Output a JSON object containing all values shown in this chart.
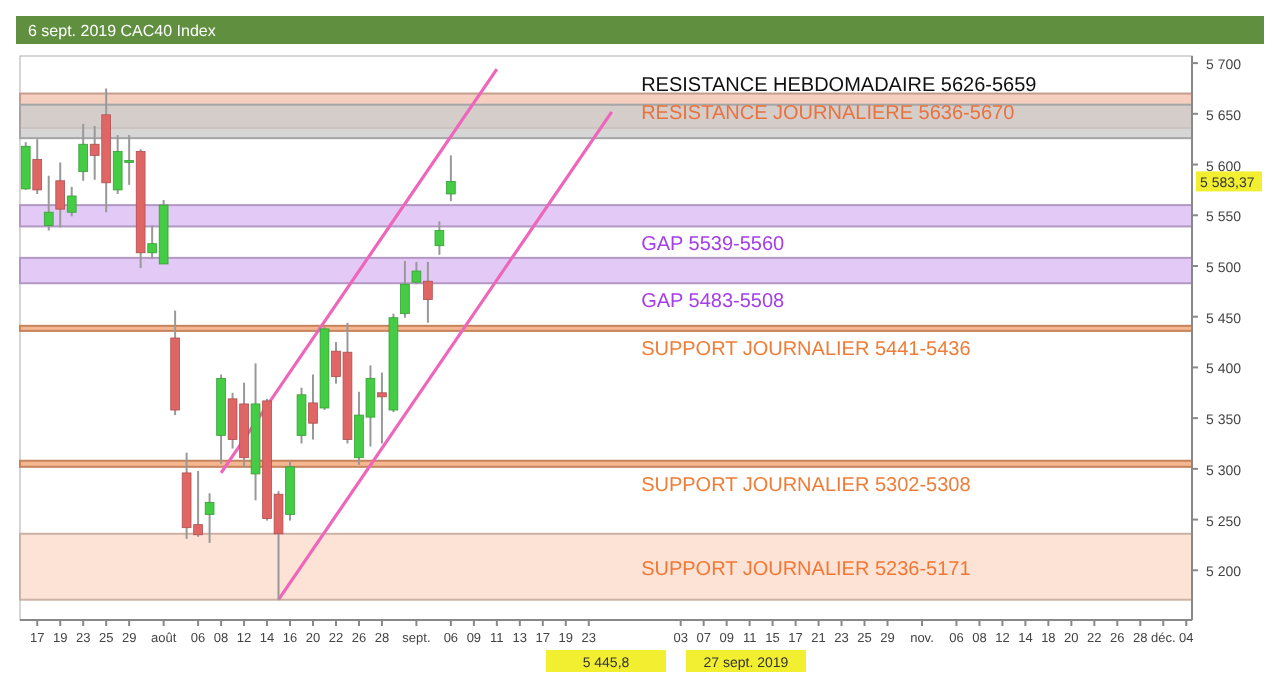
{
  "chart_data": {
    "type": "candlestick",
    "title": "6 sept. 2019 CAC40 Index",
    "categories": [
      null,
      "17",
      null,
      "19",
      null,
      "23",
      null,
      "25",
      null,
      "29",
      null,
      null,
      "août",
      null,
      null,
      "06",
      null,
      "08",
      null,
      "12",
      null,
      "14",
      null,
      "16",
      null,
      "20",
      null,
      "22",
      null,
      "26",
      null,
      "28",
      null,
      null,
      "sept.",
      null,
      null,
      "06",
      null,
      "09",
      null,
      "11",
      null,
      "13",
      null,
      "17",
      null,
      "19",
      null,
      "23",
      null,
      null,
      null,
      null,
      null,
      null,
      null,
      "03",
      null,
      "07",
      null,
      "09",
      null,
      "11",
      null,
      "15",
      null,
      "17",
      null,
      "21",
      null,
      "23",
      null,
      "25",
      null,
      "29",
      null,
      null,
      "nov.",
      null,
      null,
      "06",
      null,
      "08",
      null,
      "12",
      null,
      "14",
      null,
      "18",
      null,
      "20",
      null,
      "22",
      null,
      "26",
      null,
      "28",
      null,
      "déc.",
      null,
      "04"
    ],
    "ohlc": [
      [
        5576,
        5622,
        5575,
        5618
      ],
      [
        5605,
        5625,
        5571,
        5575
      ],
      [
        5540,
        5589,
        5535,
        5553
      ],
      [
        5584,
        5602,
        5538,
        5556
      ],
      [
        5553,
        5578,
        5549,
        5569
      ],
      [
        5593,
        5640,
        5584,
        5620
      ],
      [
        5620,
        5638,
        5585,
        5609
      ],
      [
        5649,
        5675,
        5553,
        5582
      ],
      [
        5575,
        5629,
        5571,
        5613
      ],
      [
        5602,
        5629,
        5580,
        5604
      ],
      [
        5613,
        5615,
        5498,
        5513
      ],
      [
        5513,
        5540,
        5507,
        5522
      ],
      [
        5502,
        5565,
        5502,
        5560
      ],
      [
        5429,
        5456,
        5353,
        5358
      ],
      [
        5296,
        5316,
        5231,
        5242
      ],
      [
        5245,
        5298,
        5233,
        5235
      ],
      [
        5255,
        5276,
        5227,
        5267
      ],
      [
        5333,
        5393,
        5305,
        5389
      ],
      [
        5369,
        5375,
        5320,
        5329
      ],
      [
        5364,
        5385,
        5302,
        5311
      ],
      [
        5295,
        5404,
        5269,
        5364
      ],
      [
        5367,
        5369,
        5249,
        5251
      ],
      [
        5275,
        5278,
        5171,
        5236
      ],
      [
        5255,
        5307,
        5249,
        5302
      ],
      [
        5333,
        5380,
        5325,
        5373
      ],
      [
        5365,
        5393,
        5329,
        5345
      ],
      [
        5360,
        5440,
        5358,
        5438
      ],
      [
        5416,
        5425,
        5384,
        5391
      ],
      [
        5415,
        5444,
        5325,
        5329
      ],
      [
        5311,
        5376,
        5304,
        5353
      ],
      [
        5351,
        5402,
        5322,
        5389
      ],
      [
        5375,
        5395,
        5325,
        5371
      ],
      [
        5358,
        5453,
        5356,
        5449
      ],
      [
        5453,
        5505,
        5449,
        5482
      ],
      [
        5484,
        5504,
        5482,
        5495
      ],
      [
        5485,
        5504,
        5444,
        5467
      ],
      [
        5520,
        5544,
        5511,
        5535
      ],
      [
        5571,
        5609,
        5564,
        5583.37
      ],
      null,
      null,
      null,
      null,
      null,
      null,
      null,
      null,
      null,
      null,
      null,
      null,
      null,
      null,
      null,
      null,
      null,
      null,
      null,
      null,
      null,
      null,
      null,
      null,
      null,
      null,
      null,
      null,
      null,
      null,
      null,
      null,
      null,
      null,
      null,
      null,
      null,
      null,
      null,
      null,
      null,
      null,
      null,
      null,
      null,
      null,
      null,
      null,
      null,
      null,
      null,
      null,
      null,
      null,
      null,
      null,
      null,
      null,
      null,
      null,
      null,
      null,
      null,
      null
    ],
    "colors": [
      "#44cc44",
      "#e06666",
      "#44cc44",
      "#e06666",
      "#44cc44",
      "#44cc44",
      "#e06666",
      "#e06666",
      "#44cc44",
      "#44cc44",
      "#e06666",
      "#44cc44",
      "#44cc44",
      "#e06666",
      "#e06666",
      "#e06666",
      "#44cc44",
      "#44cc44",
      "#e06666",
      "#e06666",
      "#44cc44",
      "#e06666",
      "#e06666",
      "#44cc44",
      "#44cc44",
      "#e06666",
      "#44cc44",
      "#e06666",
      "#e06666",
      "#44cc44",
      "#44cc44",
      "#e06666",
      "#44cc44",
      "#44cc44",
      "#44cc44",
      "#e06666",
      "#44cc44",
      "#44cc44",
      null,
      null,
      null,
      null,
      null,
      null,
      null,
      null,
      null,
      null,
      null,
      null,
      null,
      null,
      null,
      null,
      null,
      null,
      null,
      null,
      null,
      null,
      null,
      null,
      null,
      null,
      null,
      null,
      null,
      null,
      null,
      null,
      null,
      null,
      null,
      null,
      null,
      null,
      null,
      null,
      null,
      null,
      null,
      null,
      null,
      null,
      null,
      null,
      null,
      null,
      null,
      null,
      null,
      null,
      null,
      null,
      null,
      null,
      null,
      null,
      null,
      null,
      null,
      null
    ],
    "series": [
      {
        "type": "line",
        "color": "#ee66bb",
        "values": [
          null,
          null,
          null,
          null,
          null,
          null,
          null,
          null,
          null,
          null,
          null,
          null,
          null,
          null,
          null,
          null,
          null,
          5296,
          null,
          null,
          null,
          null,
          null,
          null,
          null,
          null,
          null,
          null,
          null,
          null,
          null,
          null,
          null,
          null,
          null,
          null,
          null,
          null,
          null,
          null,
          null,
          5694,
          null,
          null,
          null,
          null,
          null,
          null,
          null,
          null,
          null,
          null,
          null,
          null,
          null,
          null,
          null,
          null,
          null,
          null,
          null,
          null,
          null,
          null,
          null,
          null,
          null,
          null,
          null,
          null,
          null,
          null,
          null,
          null,
          null,
          null,
          null,
          null,
          null,
          null,
          null,
          null,
          null,
          null,
          null,
          null,
          null,
          null,
          null,
          null,
          null,
          null,
          null,
          null,
          null,
          null,
          null,
          null,
          null,
          null,
          null,
          null
        ]
      },
      {
        "type": "line",
        "color": "#ee66bb",
        "values": [
          null,
          null,
          null,
          null,
          null,
          null,
          null,
          null,
          null,
          null,
          null,
          null,
          null,
          null,
          null,
          null,
          null,
          null,
          null,
          null,
          null,
          null,
          5171,
          null,
          null,
          null,
          null,
          null,
          null,
          null,
          null,
          null,
          null,
          null,
          null,
          null,
          null,
          null,
          null,
          null,
          null,
          null,
          null,
          null,
          null,
          null,
          null,
          null,
          null,
          null,
          null,
          5652,
          null,
          null,
          null,
          null,
          null,
          null,
          null,
          null,
          null,
          null,
          null,
          null,
          null,
          null,
          null,
          null,
          null,
          null,
          null,
          null,
          null,
          null,
          null,
          null,
          null,
          null,
          null,
          null,
          null,
          null,
          null,
          null,
          null,
          null,
          null,
          null,
          null,
          null,
          null,
          null,
          null,
          null,
          null,
          null,
          null,
          null,
          null,
          null,
          null,
          null
        ]
      }
    ],
    "ylim": [
      5151,
      5707
    ],
    "yticks": [
      {
        "value": 5200,
        "label": "5 200"
      },
      {
        "value": 5250,
        "label": "5 250"
      },
      {
        "value": 5300,
        "label": "5 300"
      },
      {
        "value": 5350,
        "label": "5 350"
      },
      {
        "value": 5400,
        "label": "5 400"
      },
      {
        "value": 5450,
        "label": "5 450"
      },
      {
        "value": 5500,
        "label": "5 500"
      },
      {
        "value": 5550,
        "label": "5 550"
      },
      {
        "value": 5600,
        "label": "5 600"
      },
      {
        "value": 5650,
        "label": "5 650"
      },
      {
        "value": 5700,
        "label": "5 700"
      }
    ],
    "bands": [
      {
        "axis": "y",
        "from": 5636,
        "to": 5670,
        "label": "RESISTANCE JOURNALIERE 5636-5670",
        "color": "#f2c4b0"
      },
      {
        "axis": "y",
        "from": 5626,
        "to": 5659,
        "label": "RESISTANCE HEBDOMADAIRE 5626-5659",
        "color": "#cccccc"
      },
      {
        "axis": "y",
        "from": 5539,
        "to": 5560,
        "label": "GAP 5539-5560",
        "color": "#dcbcf2"
      },
      {
        "axis": "y",
        "from": 5483,
        "to": 5508,
        "label": "GAP 5483-5508",
        "color": "#dcbcf2"
      },
      {
        "axis": "y",
        "from": 5436,
        "to": 5441,
        "label": "SUPPORT JOURNALIER 5441-5436",
        "color": "#f4a474"
      },
      {
        "axis": "y",
        "from": 5302,
        "to": 5308,
        "label": "SUPPORT JOURNALIER 5302-5308",
        "color": "#f4a474"
      },
      {
        "axis": "y",
        "from": 5171,
        "to": 5236,
        "label": "SUPPORT JOURNALIER 5236-5171",
        "color": "#fcdccb"
      }
    ],
    "annotations": [
      {
        "text": "5 583,37",
        "y": 5583.37
      },
      "5 445,8",
      "27 sept. 2019"
    ]
  }
}
